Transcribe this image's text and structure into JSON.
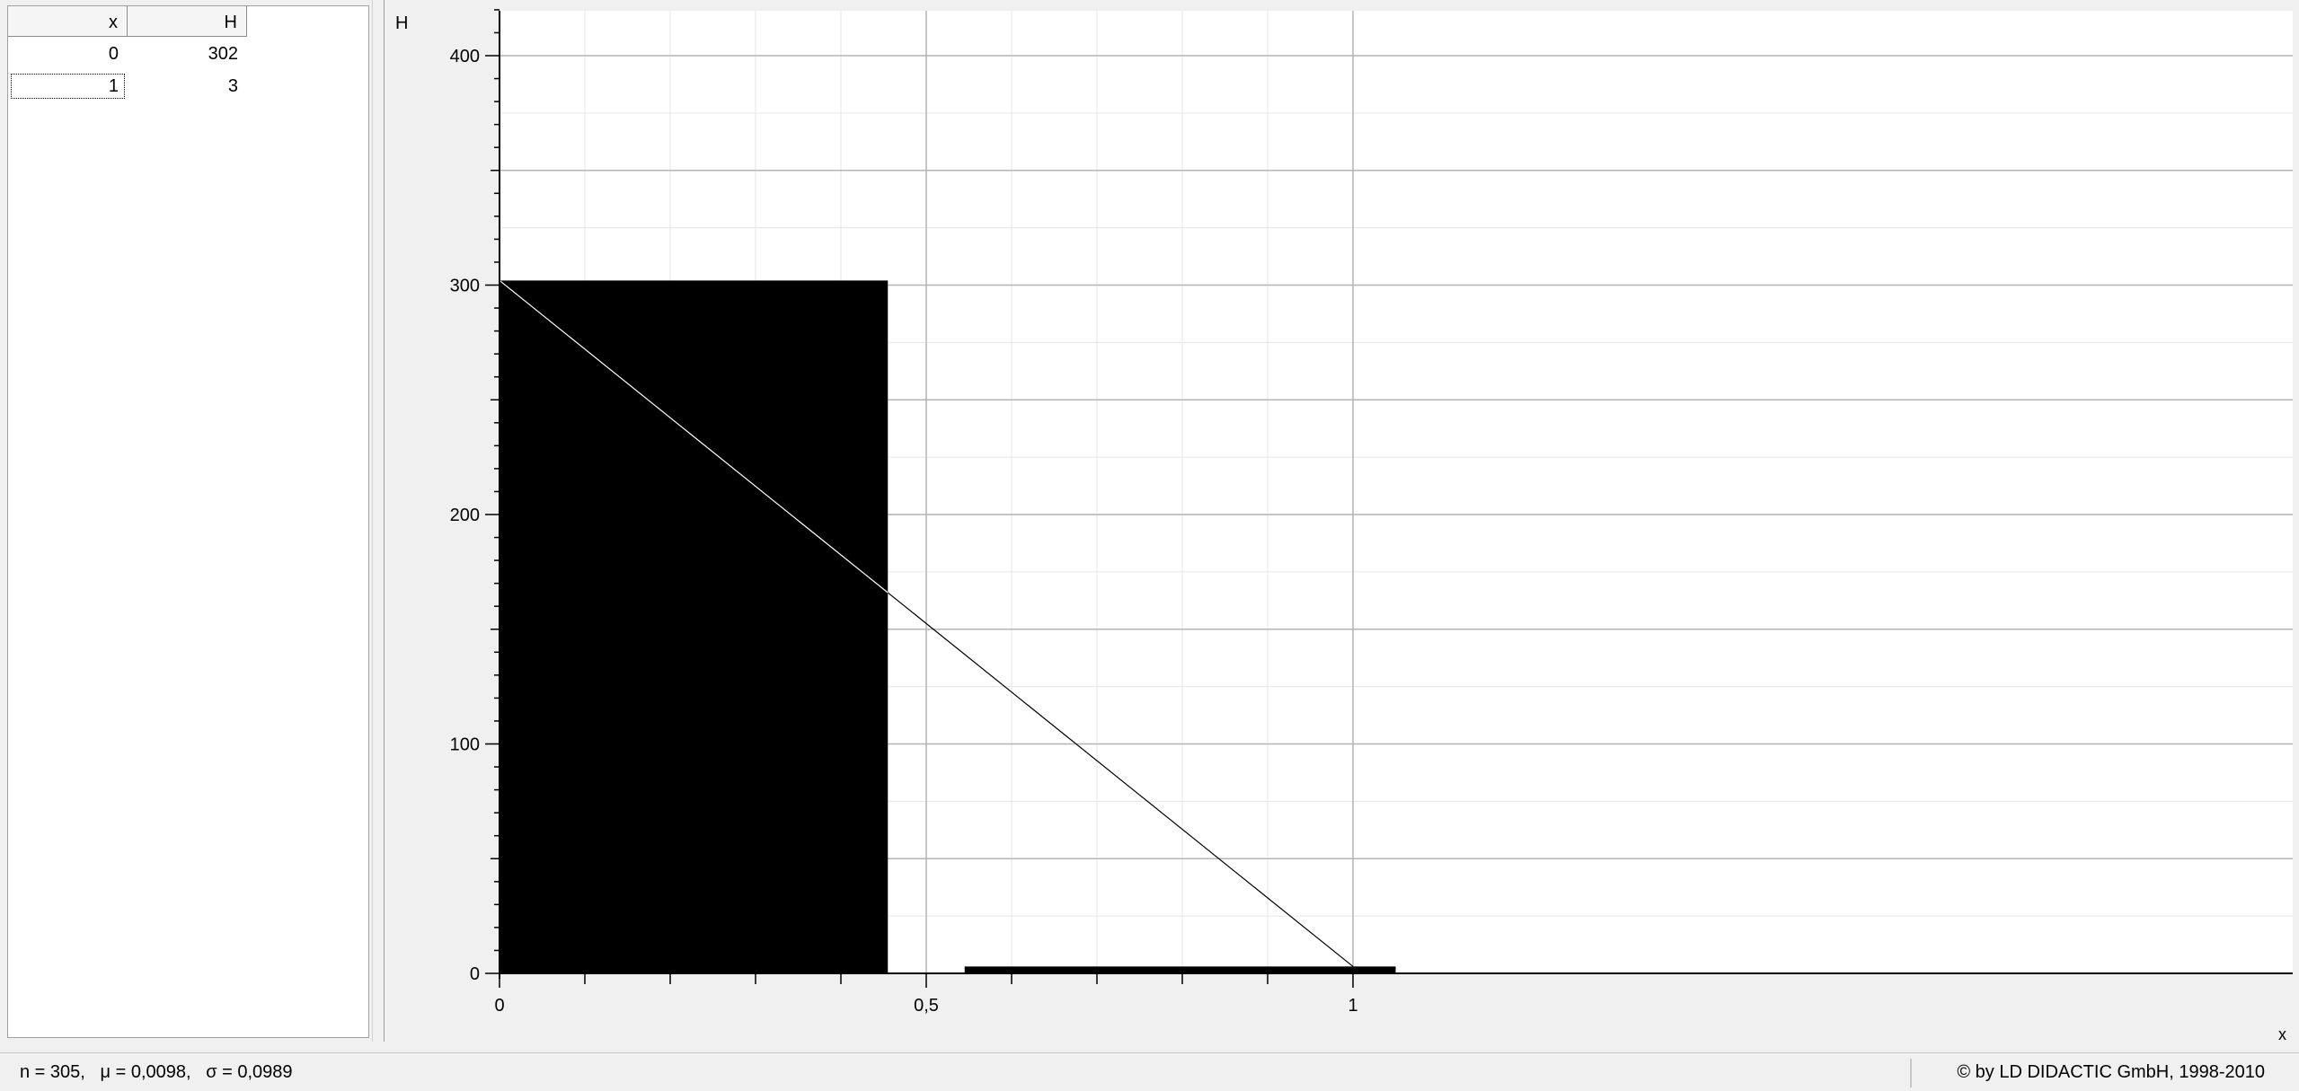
{
  "table": {
    "columns": [
      "x",
      "H"
    ],
    "rows": [
      {
        "x": "0",
        "H": "302"
      },
      {
        "x": "1",
        "H": "3"
      }
    ]
  },
  "chart_data": {
    "type": "bar",
    "x": [
      0,
      1
    ],
    "values": [
      302,
      3
    ],
    "xlabel": "x",
    "ylabel": "H",
    "xlim": [
      0,
      1.05
    ],
    "ylim": [
      0,
      420
    ],
    "x_ticks": [
      {
        "value": 0,
        "label": "0"
      },
      {
        "value": 0.5,
        "label": "0,5"
      },
      {
        "value": 1,
        "label": "1"
      }
    ],
    "y_ticks": [
      {
        "value": 0,
        "label": "0"
      },
      {
        "value": 100,
        "label": "100"
      },
      {
        "value": 200,
        "label": "200"
      },
      {
        "value": 300,
        "label": "300"
      },
      {
        "value": 400,
        "label": "400"
      }
    ],
    "bars": [
      {
        "x_start": 0,
        "x_end": 0.455,
        "value": 302
      },
      {
        "x_start": 0.545,
        "x_end": 1.05,
        "value": 3
      }
    ],
    "fit_line": {
      "x": [
        0,
        1
      ],
      "y": [
        302,
        3
      ]
    },
    "grid": true,
    "bar_color": "#000000",
    "line_color": "#ffffff",
    "grid_color": "#b4b4b4"
  },
  "status": {
    "stats": "n = 305,   μ = 0,0098,   σ = 0,0989",
    "copyright": "© by LD DIDACTIC GmbH, 1998-2010"
  }
}
